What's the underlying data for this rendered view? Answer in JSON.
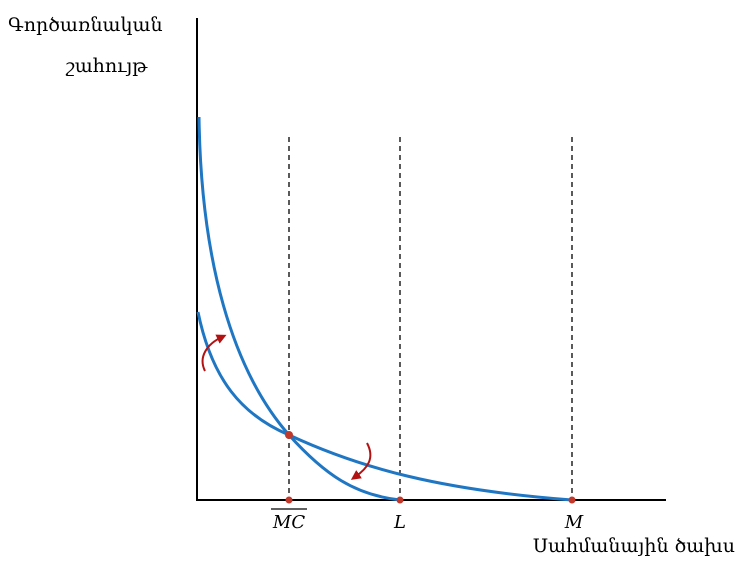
{
  "labels": {
    "y_axis_line1": "Գործառնական",
    "y_axis_line2": "շահույթ",
    "x_axis": "Սահմանային ծախս"
  },
  "ticks": [
    "MC",
    "L",
    "M"
  ],
  "ticks_overlined": [
    true,
    false,
    false
  ],
  "colors": {
    "curve": "#1f77c4",
    "arrow": "#b31212",
    "point": "#c0392b",
    "axis": "#000000"
  },
  "chart_data": {
    "type": "line",
    "title": "",
    "xlabel": "Սահմանային ծախս",
    "ylabel": "Գործառնական շահույթ",
    "x_ticks": [
      "MC",
      "L",
      "M"
    ],
    "series": [
      {
        "description": "steep curve starting high, reaching zero at L"
      },
      {
        "description": "flatter curve starting lower, reaching zero at M"
      }
    ],
    "intersection_at": "MC",
    "arrows": [
      "rotation arrow near vertical axis (counter-clockwise)",
      "rotation arrow near intersection (clockwise)"
    ]
  }
}
